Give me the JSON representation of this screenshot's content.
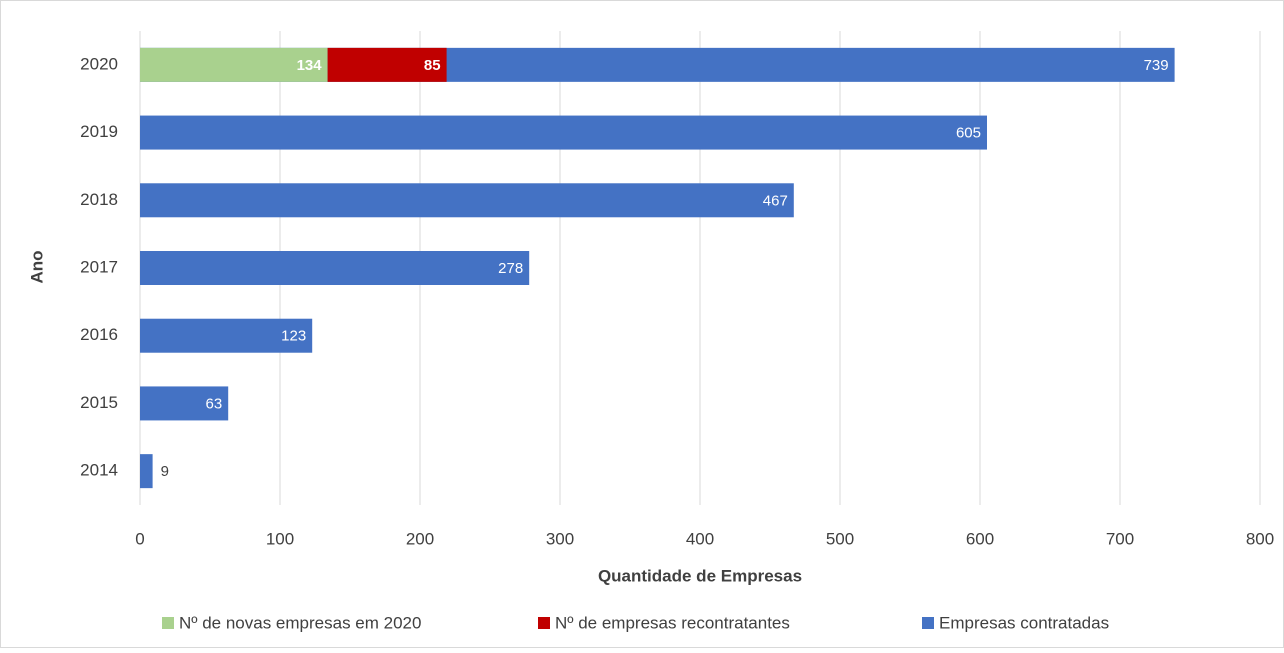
{
  "chart_data": {
    "type": "bar",
    "orientation": "horizontal",
    "x_label": "Quantidade de Empresas",
    "y_label": "Ano",
    "categories": [
      "2020",
      "2019",
      "2018",
      "2017",
      "2016",
      "2015",
      "2014"
    ],
    "series": [
      {
        "name": "Nº de novas empresas em 2020",
        "color": "#a9d18e",
        "values": [
          134,
          null,
          null,
          null,
          null,
          null,
          null
        ]
      },
      {
        "name": "Nº de empresas recontratantes",
        "color": "#c00000",
        "values": [
          85,
          null,
          null,
          null,
          null,
          null,
          null
        ]
      },
      {
        "name": "Empresas contratadas",
        "color": "#4472c4",
        "values": [
          739,
          605,
          467,
          278,
          123,
          63,
          9
        ]
      }
    ],
    "xlim": [
      0,
      800
    ],
    "xticks": [
      0,
      100,
      200,
      300,
      400,
      500,
      600,
      700,
      800
    ],
    "grid": true,
    "legend": "bottom"
  }
}
